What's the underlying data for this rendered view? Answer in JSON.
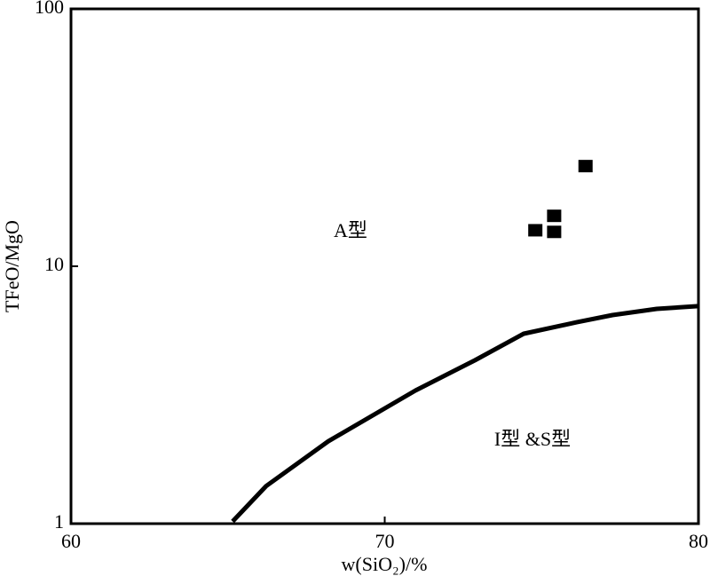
{
  "chart_data": {
    "type": "scatter",
    "x_label": "w(SiO₂)/%",
    "y_label": "TFeO/MgO",
    "annotations": [
      "A型",
      "I型 &S型"
    ],
    "xlim": [
      60,
      80
    ],
    "xticks": [
      60,
      70,
      80
    ],
    "ylim": [
      1,
      100
    ],
    "yticks": [
      1,
      10,
      100
    ],
    "log_y": true,
    "series": [
      {
        "type": "scatter",
        "color": "#000000",
        "x": [
          74.8,
          75.4,
          75.4,
          76.4
        ],
        "values": [
          13.8,
          15.7,
          13.6,
          24.5
        ]
      },
      {
        "type": "line",
        "color": "#000000",
        "x": [
          65.15,
          66.22,
          68.2,
          70.98,
          72.87,
          74.43,
          76.12,
          77.26,
          78.67,
          80
        ],
        "values": [
          1.02,
          1.4,
          2.09,
          3.29,
          4.31,
          5.47,
          6.06,
          6.46,
          6.83,
          7.0
        ]
      }
    ]
  }
}
